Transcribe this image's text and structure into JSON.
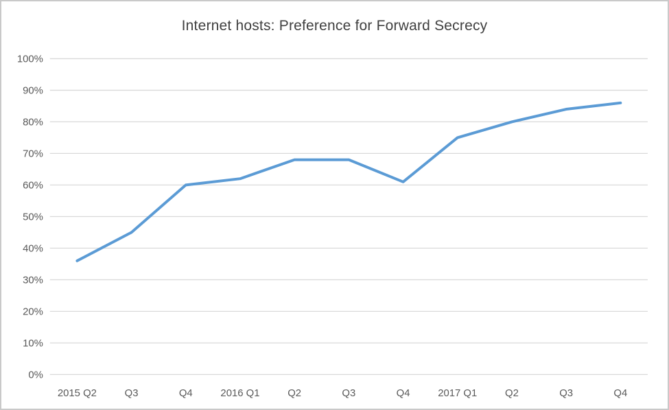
{
  "window": {
    "background": "#ffffff",
    "border_color": "#c9c9c9"
  },
  "chart_data": {
    "type": "line",
    "title": "Internet hosts: Preference for Forward Secrecy",
    "categories": [
      "2015 Q2",
      "Q3",
      "Q4",
      "2016 Q1",
      "Q2",
      "Q3",
      "Q4",
      "2017 Q1",
      "Q2",
      "Q3",
      "Q4"
    ],
    "values": [
      36,
      45,
      60,
      62,
      68,
      68,
      61,
      75,
      80,
      84,
      86
    ],
    "xlabel": "",
    "ylabel": "",
    "ylim": [
      0,
      100
    ],
    "y_tick_step": 10,
    "y_tick_labels": [
      "0%",
      "10%",
      "20%",
      "30%",
      "40%",
      "50%",
      "60%",
      "70%",
      "80%",
      "90%",
      "100%"
    ],
    "grid": "horizontal",
    "legend": "none",
    "line_color": "#5B9BD5",
    "line_width": 4,
    "gridline_color": "#D9D9D9",
    "axis_label_color": "#595959",
    "title_color": "#404040"
  }
}
